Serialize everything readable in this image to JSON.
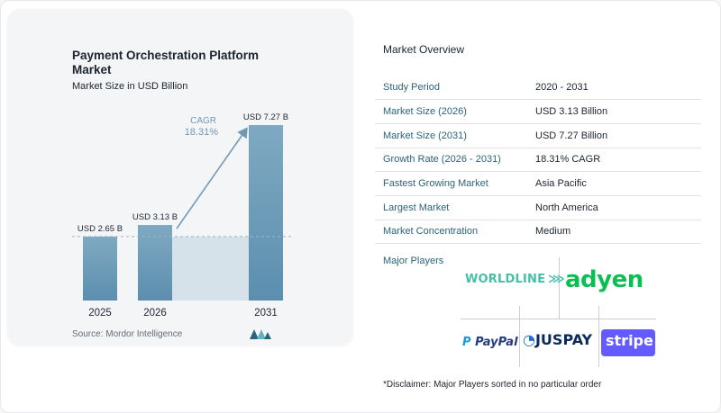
{
  "chart_data": {
    "type": "bar",
    "title": "Payment Orchestration Platform Market",
    "subtitle": "Market Size in USD Billion",
    "categories": [
      "2025",
      "2026",
      "2031"
    ],
    "values": [
      2.65,
      3.13,
      7.27
    ],
    "value_labels": [
      "USD 2.65 B",
      "USD 3.13 B",
      "USD 7.27 B"
    ],
    "ylim": [
      0,
      7.27
    ],
    "annotation": {
      "label": "CAGR",
      "value": "18.31%"
    },
    "colors": {
      "bar_top": "#7fa9c2",
      "bar_bottom": "#5b8fae",
      "shade": "#d5e2ea",
      "arrow": "#6f9ab5",
      "cagr": "#6f9ab5"
    }
  },
  "source": "Source: Mordor Intelligence",
  "overview": {
    "title": "Market Overview",
    "rows": [
      {
        "key": "Study Period",
        "value": "2020 - 2031"
      },
      {
        "key": "Market Size (2026)",
        "value": "USD 3.13 Billion"
      },
      {
        "key": "Market Size (2031)",
        "value": "USD 7.27 Billion"
      },
      {
        "key": "Growth Rate (2026 - 2031)",
        "value": "18.31% CAGR"
      },
      {
        "key": "Fastest Growing Market",
        "value": "Asia Pacific"
      },
      {
        "key": "Largest Market",
        "value": "North America"
      },
      {
        "key": "Market Concentration",
        "value": "Medium"
      }
    ]
  },
  "players": {
    "title": "Major Players",
    "logos": [
      "WORLDLINE",
      "adyen",
      "PayPal",
      "JUSPAY",
      "stripe"
    ]
  },
  "disclaimer": "*Disclaimer: Major Players sorted in no particular order"
}
